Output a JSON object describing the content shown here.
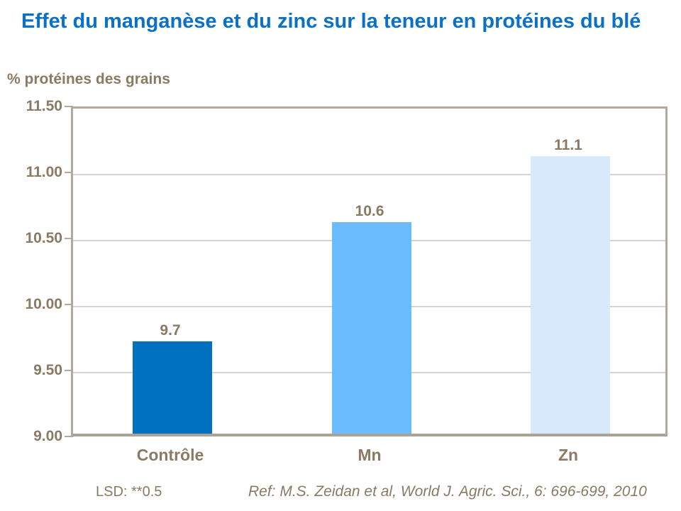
{
  "page": {
    "title": "Effet du manganèse et du zinc sur la teneur en protéines du blé",
    "axis_title": "% protéines des grains",
    "footer": {
      "lsd": "LSD: **0.5",
      "reference": "Ref: M.S. Zeidan et al, World J. Agric. Sci., 6: 696-699, 2010"
    }
  },
  "colors": {
    "title_blue": "#0a71c6",
    "text_brown": "#8a7a63",
    "axis_line": "#b2a99c",
    "gridline": "#d8d4cd"
  },
  "chart_data": {
    "type": "bar",
    "title": "Effet du manganèse et du zinc sur la teneur en protéines du blé",
    "xlabel": "",
    "ylabel": "% protéines des grains",
    "categories": [
      "Contrôle",
      "Mn",
      "Zn"
    ],
    "values": [
      9.7,
      10.6,
      11.1
    ],
    "data_labels": [
      "9.7",
      "10.6",
      "11.1"
    ],
    "bar_colors": [
      "#0070c0",
      "#6bbcfc",
      "#d7eafb"
    ],
    "ylim": [
      9.0,
      11.5
    ],
    "ytick_step": 0.5,
    "ytick_labels": [
      "11.50",
      "11.00",
      "10.50",
      "10.00",
      "9.50",
      "9.00"
    ],
    "grid": true,
    "legend_position": "none",
    "annotations": [
      "LSD: **0.5",
      "Ref: M.S. Zeidan et al, World J. Agric. Sci., 6: 696-699, 2010"
    ]
  }
}
